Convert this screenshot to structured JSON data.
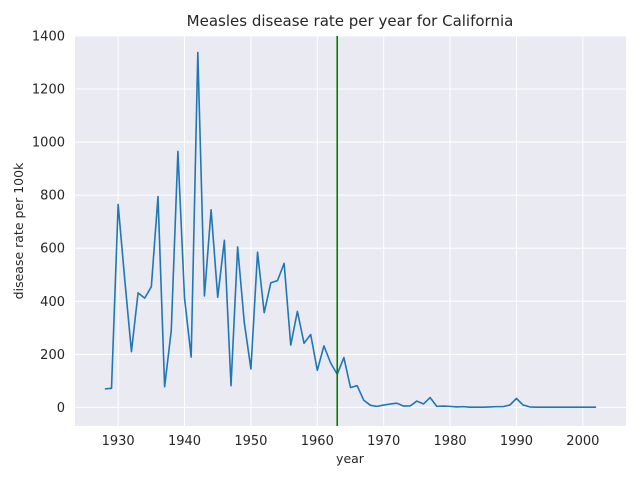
{
  "chart_data": {
    "type": "line",
    "title": "Measles disease rate per year for California",
    "xlabel": "year",
    "ylabel": "disease rate per 100k",
    "xlim": [
      1923.5,
      2006.5
    ],
    "ylim": [
      -70,
      1400
    ],
    "xticks": [
      1930,
      1940,
      1950,
      1960,
      1970,
      1980,
      1990,
      2000
    ],
    "yticks": [
      0,
      200,
      400,
      600,
      800,
      1000,
      1200,
      1400
    ],
    "grid": true,
    "vline": {
      "x": 1963,
      "color": "#008000"
    },
    "series": [
      {
        "color": "#1f77b4",
        "points": [
          [
            1928,
            70
          ],
          [
            1929,
            72
          ],
          [
            1930,
            765
          ],
          [
            1931,
            480
          ],
          [
            1932,
            210
          ],
          [
            1933,
            432
          ],
          [
            1934,
            412
          ],
          [
            1935,
            455
          ],
          [
            1936,
            795
          ],
          [
            1937,
            78
          ],
          [
            1938,
            290
          ],
          [
            1939,
            965
          ],
          [
            1940,
            412
          ],
          [
            1941,
            190
          ],
          [
            1942,
            1338
          ],
          [
            1943,
            420
          ],
          [
            1944,
            745
          ],
          [
            1945,
            415
          ],
          [
            1946,
            630
          ],
          [
            1947,
            82
          ],
          [
            1948,
            605
          ],
          [
            1949,
            320
          ],
          [
            1950,
            145
          ],
          [
            1951,
            585
          ],
          [
            1952,
            357
          ],
          [
            1953,
            470
          ],
          [
            1954,
            478
          ],
          [
            1955,
            543
          ],
          [
            1956,
            235
          ],
          [
            1957,
            362
          ],
          [
            1958,
            242
          ],
          [
            1959,
            275
          ],
          [
            1960,
            140
          ],
          [
            1961,
            232
          ],
          [
            1962,
            168
          ],
          [
            1963,
            125
          ],
          [
            1964,
            188
          ],
          [
            1965,
            75
          ],
          [
            1966,
            82
          ],
          [
            1967,
            27
          ],
          [
            1968,
            8
          ],
          [
            1969,
            4
          ],
          [
            1970,
            9
          ],
          [
            1971,
            13
          ],
          [
            1972,
            16
          ],
          [
            1973,
            5
          ],
          [
            1974,
            6
          ],
          [
            1975,
            24
          ],
          [
            1976,
            13
          ],
          [
            1977,
            37
          ],
          [
            1978,
            4
          ],
          [
            1979,
            5
          ],
          [
            1980,
            4
          ],
          [
            1981,
            2
          ],
          [
            1982,
            3
          ],
          [
            1983,
            1
          ],
          [
            1984,
            1
          ],
          [
            1985,
            1
          ],
          [
            1986,
            2
          ],
          [
            1987,
            3
          ],
          [
            1988,
            3
          ],
          [
            1989,
            9
          ],
          [
            1990,
            34
          ],
          [
            1991,
            9
          ],
          [
            1992,
            2
          ],
          [
            1993,
            1
          ],
          [
            1994,
            1
          ],
          [
            1995,
            1
          ],
          [
            1996,
            1
          ],
          [
            1997,
            1
          ],
          [
            1998,
            1
          ],
          [
            1999,
            1
          ],
          [
            2000,
            1
          ],
          [
            2001,
            1
          ],
          [
            2002,
            1
          ]
        ]
      }
    ]
  },
  "colors": {
    "plot_background": "#eaeaf2",
    "grid": "#ffffff",
    "line": "#1f77b4",
    "vline": "#008000",
    "text": "#262626"
  }
}
